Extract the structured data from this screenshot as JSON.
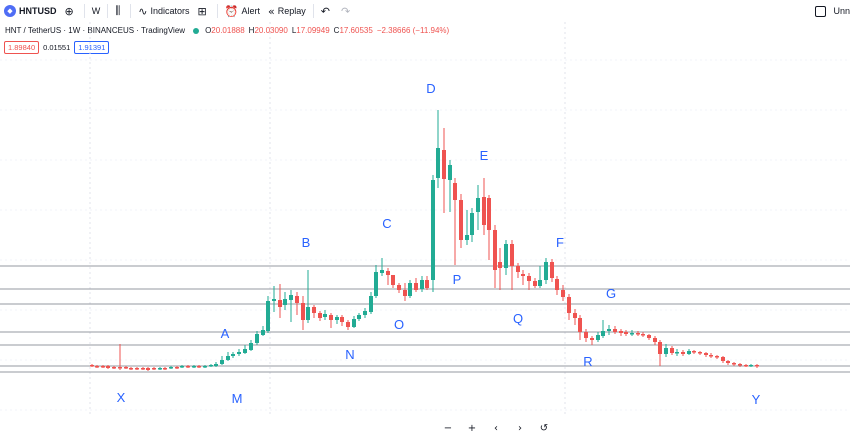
{
  "toolbar": {
    "symbol": "HNTUSD",
    "interval": "W",
    "indicators": "Indicators",
    "alert": "Alert",
    "replay": "Replay",
    "right_label": "Unn"
  },
  "legend": {
    "title": "HNT / TetherUS · 1W · BINANCEUS · TradingView",
    "o": "O",
    "o_val": "20.01888",
    "h": "H",
    "h_val": "20.03090",
    "l": "L",
    "l_val": "17.09949",
    "c": "C",
    "c_val": "17.60535",
    "change": "−2.38666 (−11.94%)"
  },
  "price_boxes": {
    "bid": "1.89840",
    "spread": "0.01551",
    "ask": "1.91391"
  },
  "colors": {
    "up": "#22ab94",
    "down": "#ef5350",
    "label": "#2962ff",
    "hline": "#9598a1"
  },
  "labels": [
    {
      "text": "D"
    },
    {
      "text": "E"
    },
    {
      "text": "C"
    },
    {
      "text": "B"
    },
    {
      "text": "F"
    },
    {
      "text": "P"
    },
    {
      "text": "G"
    },
    {
      "text": "A"
    },
    {
      "text": "O"
    },
    {
      "text": "Q"
    },
    {
      "text": "N"
    },
    {
      "text": "R"
    },
    {
      "text": "X"
    },
    {
      "text": "M"
    },
    {
      "text": "Y"
    }
  ],
  "nav": {
    "zoom_out": "−",
    "zoom_in": "+",
    "back": "‹",
    "forward": "›",
    "reset": "↺"
  }
}
